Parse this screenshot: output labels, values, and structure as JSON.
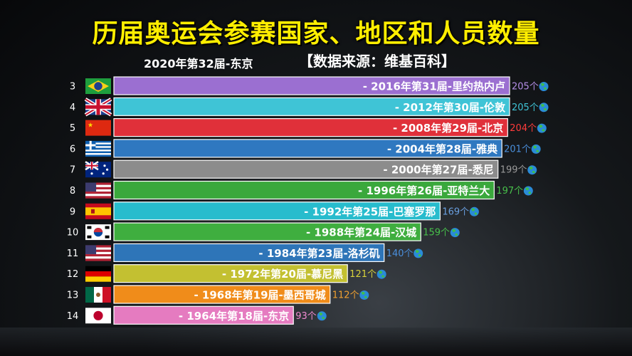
{
  "title": "历届奥运会参赛国家、地区和人员数量",
  "subtitle_left": "2020年第32届-东京",
  "subtitle_right": "【数据来源：维基百科】",
  "chart_data": {
    "type": "bar",
    "orientation": "horizontal",
    "unit_suffix": "个",
    "xlim": [
      0,
      205
    ],
    "rows": [
      {
        "rank": "3",
        "label": "- 2016年第31届-里约热内卢",
        "value": 205,
        "value_text": "205个",
        "flag": "brazil",
        "color": "#9b6fd1",
        "value_color": "#b48ee6"
      },
      {
        "rank": "4",
        "label": "- 2012年第30届-伦敦",
        "value": 205,
        "value_text": "205个",
        "flag": "uk",
        "color": "#3fc4d6",
        "value_color": "#3fc4d6"
      },
      {
        "rank": "5",
        "label": "- 2008年第29届-北京",
        "value": 204,
        "value_text": "204个",
        "flag": "china",
        "color": "#e0303a",
        "value_color": "#ff3b3b"
      },
      {
        "rank": "6",
        "label": "- 2004年第28届-雅典",
        "value": 201,
        "value_text": "201个",
        "flag": "greece",
        "color": "#2f78c0",
        "value_color": "#4a8fdc"
      },
      {
        "rank": "7",
        "label": "- 2000年第27届-悉尼",
        "value": 199,
        "value_text": "199个",
        "flag": "australia",
        "color": "#8c8c8c",
        "value_color": "#9a9a9a"
      },
      {
        "rank": "8",
        "label": "- 1996年第26届-亚特兰大",
        "value": 197,
        "value_text": "197个",
        "flag": "usa",
        "color": "#3aa83c",
        "value_color": "#47c04a"
      },
      {
        "rank": "9",
        "label": "- 1992年第25届-巴塞罗那",
        "value": 169,
        "value_text": "169个",
        "flag": "spain",
        "color": "#27bccd",
        "value_color": "#6aa0e0"
      },
      {
        "rank": "10",
        "label": "- 1988年第24届-汉城",
        "value": 159,
        "value_text": "159个",
        "flag": "korea",
        "color": "#3fae3f",
        "value_color": "#47c04a"
      },
      {
        "rank": "11",
        "label": "- 1984年第23届-洛杉矶",
        "value": 140,
        "value_text": "140个",
        "flag": "usa",
        "color": "#2e75b8",
        "value_color": "#4a8fdc"
      },
      {
        "rank": "12",
        "label": "- 1972年第20届-慕尼黑",
        "value": 121,
        "value_text": "121个",
        "flag": "germany",
        "color": "#c3c031",
        "value_color": "#d8d23a"
      },
      {
        "rank": "13",
        "label": "- 1968年第19届-墨西哥城",
        "value": 112,
        "value_text": "112个",
        "flag": "mexico",
        "color": "#f08c1a",
        "value_color": "#f0a030"
      },
      {
        "rank": "14",
        "label": "- 1964年第18届-东京",
        "value": 93,
        "value_text": "93个",
        "flag": "japan",
        "color": "#e57bc0",
        "value_color": "#f08ad0"
      }
    ]
  }
}
